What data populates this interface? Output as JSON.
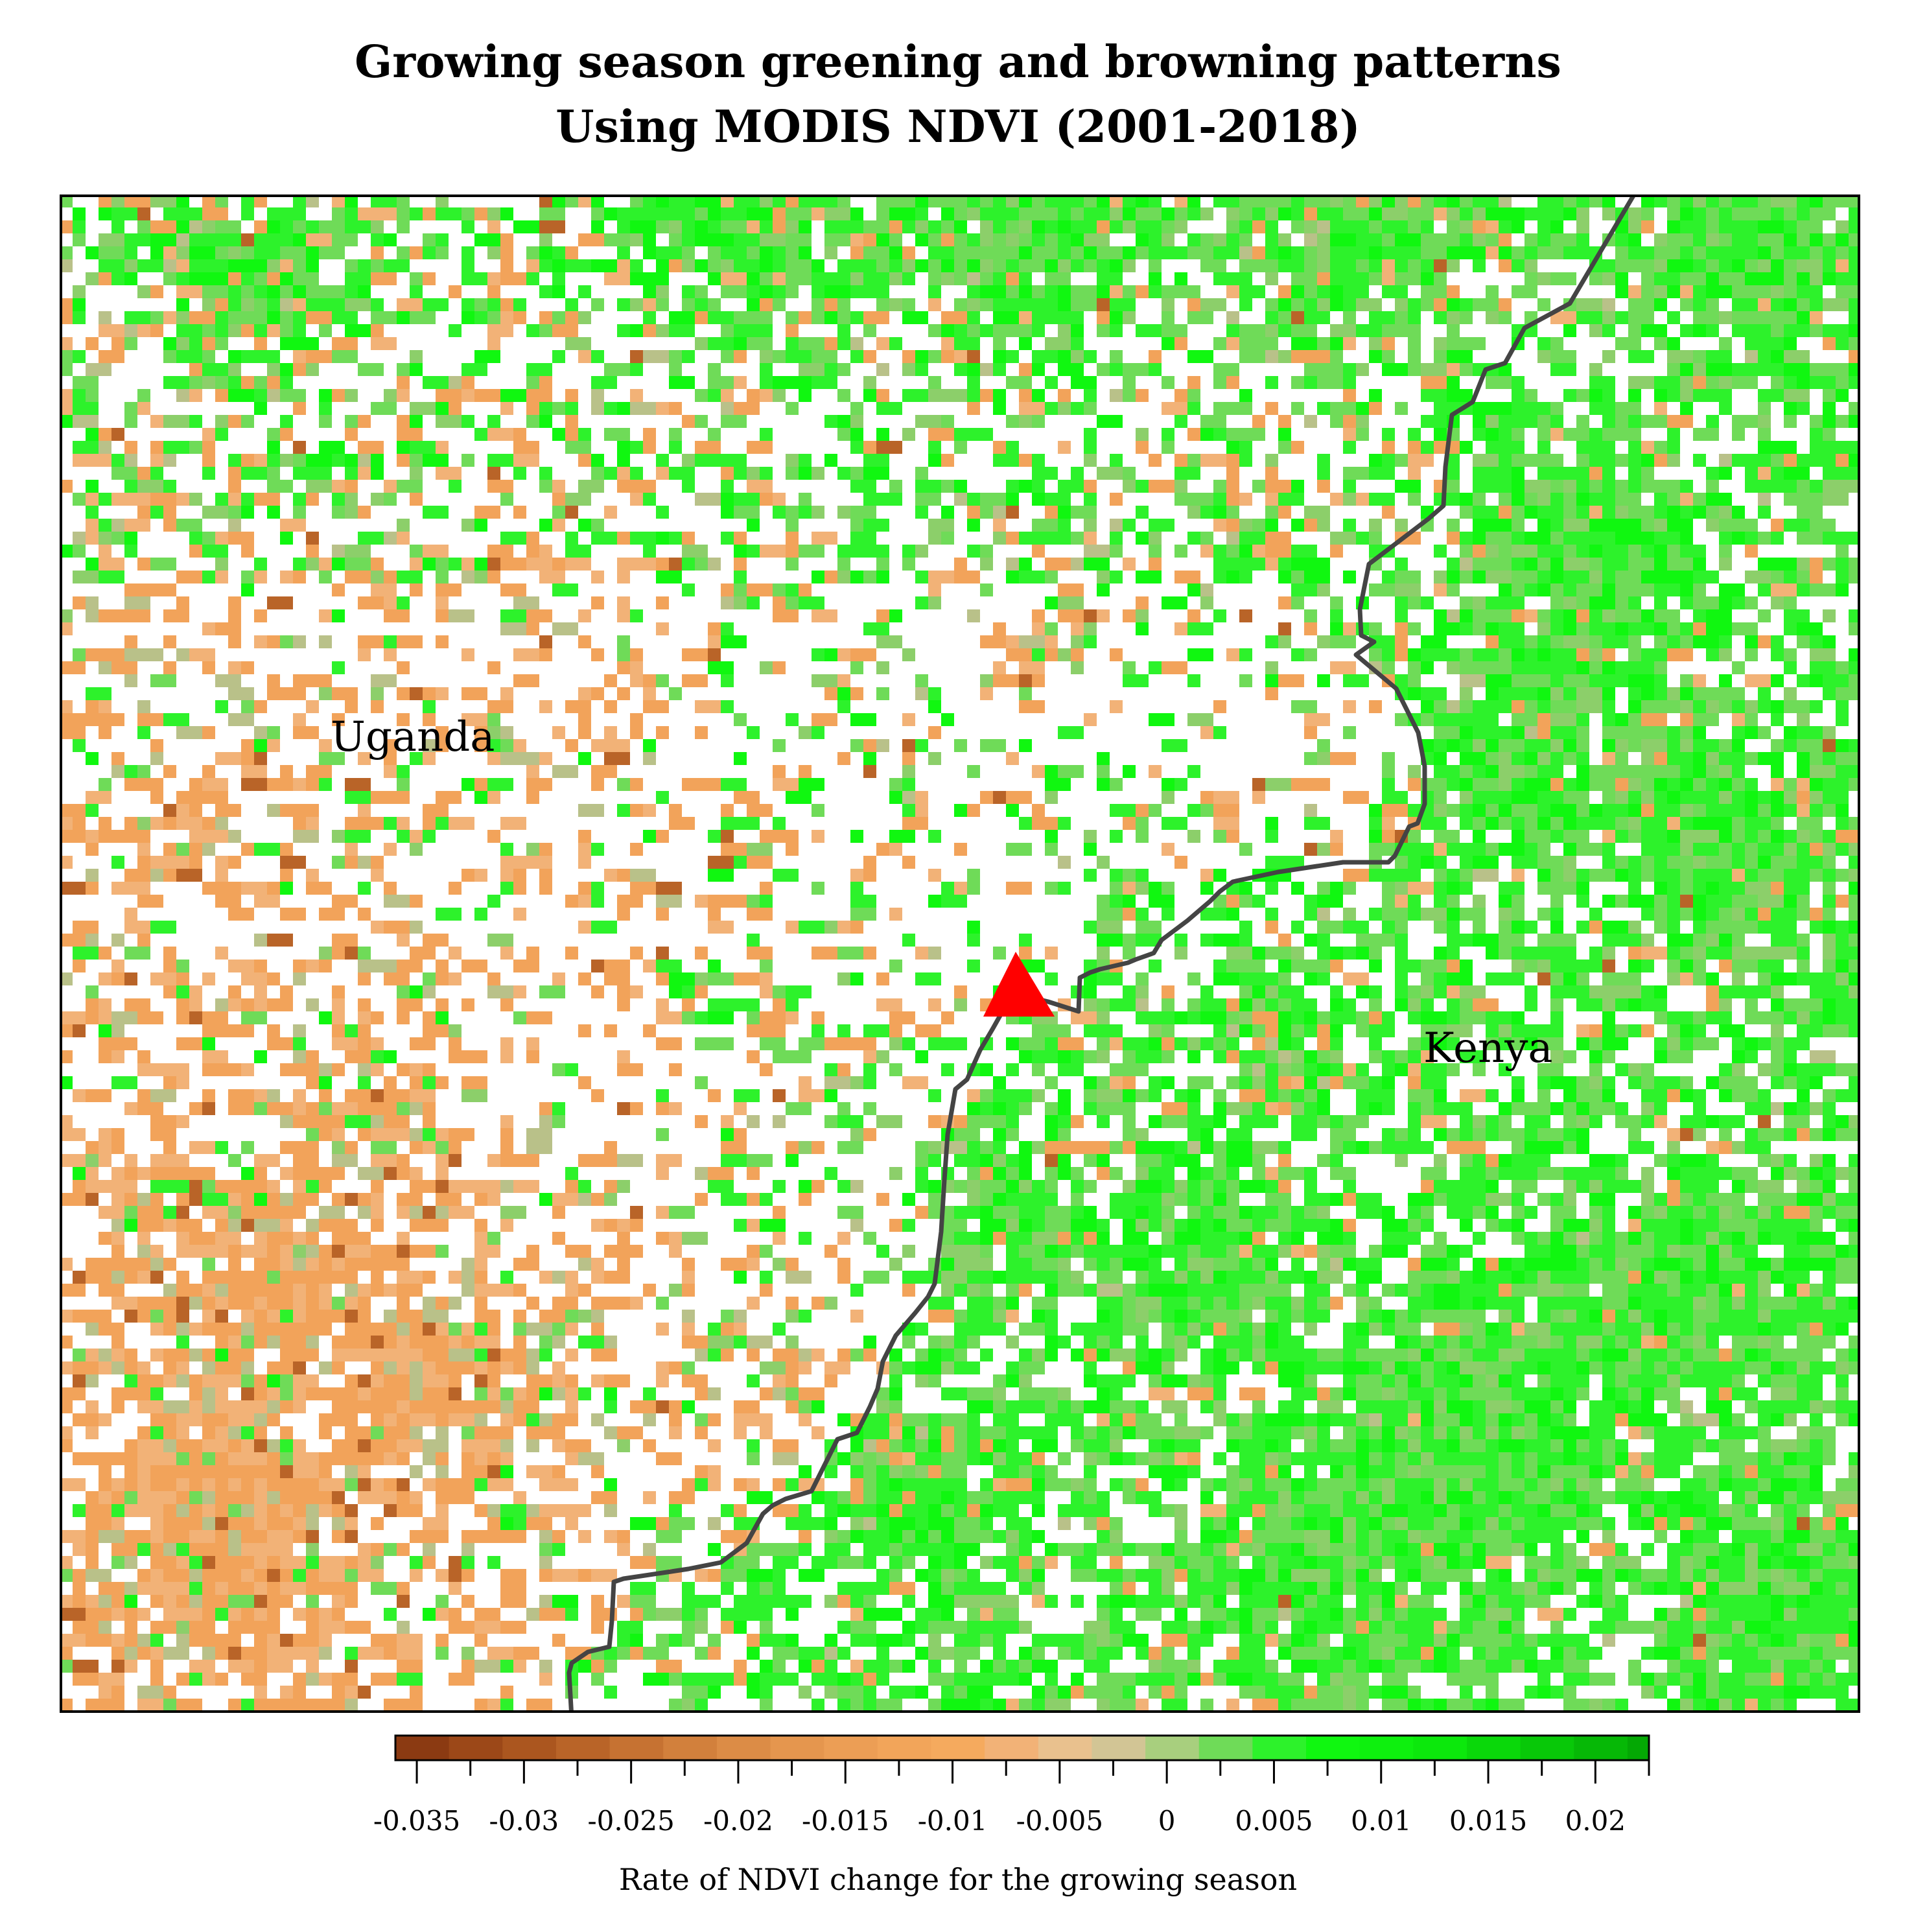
{
  "title": {
    "line1": "Growing season greening and browning patterns",
    "line2": "Using MODIS NDVI (2001-2018)"
  },
  "map": {
    "labels": [
      {
        "id": "uganda",
        "text": "Uganda"
      },
      {
        "id": "kenya",
        "text": "Kenya"
      }
    ],
    "border_color": "#444444",
    "marker": {
      "shape": "triangle",
      "color": "#ff0000"
    },
    "background_color": "#ffffff"
  },
  "legend": {
    "title": "Rate of NDVI change for the growing season",
    "range": [
      -0.036,
      0.0225
    ],
    "bin_width": 0.0025,
    "tick_values": [
      -0.035,
      -0.03,
      -0.025,
      -0.02,
      -0.015,
      -0.01,
      -0.005,
      0,
      0.005,
      0.01,
      0.015,
      0.02
    ],
    "tick_labels": [
      "-0.035",
      "-0.03",
      "-0.025",
      "-0.02",
      "-0.015",
      "-0.01",
      "-0.005",
      "0",
      "0.005",
      "0.01",
      "0.015",
      "0.02"
    ],
    "colors": [
      "#8b3a12",
      "#9c4818",
      "#ab561f",
      "#b96428",
      "#c67232",
      "#d2803c",
      "#dc8c46",
      "#e5964e",
      "#ec9e55",
      "#f2a55a",
      "#f5aa5e",
      "#f2b277",
      "#e9c18e",
      "#d2c595",
      "#a8cf7e",
      "#6fdb58",
      "#2df22b",
      "#10f710",
      "#0ef00e",
      "#0ce80c",
      "#0ad80a",
      "#08c808",
      "#06b806",
      "#04a804"
    ]
  },
  "palette": {
    "brown_dark": "#b96428",
    "orange": "#f2a35a",
    "light_orange": "#f2b277",
    "tan": "#b9c189",
    "olive_green": "#8ccf6a",
    "light_green": "#6fdb58",
    "green": "#2df22b",
    "bright_green": "#10f710"
  }
}
